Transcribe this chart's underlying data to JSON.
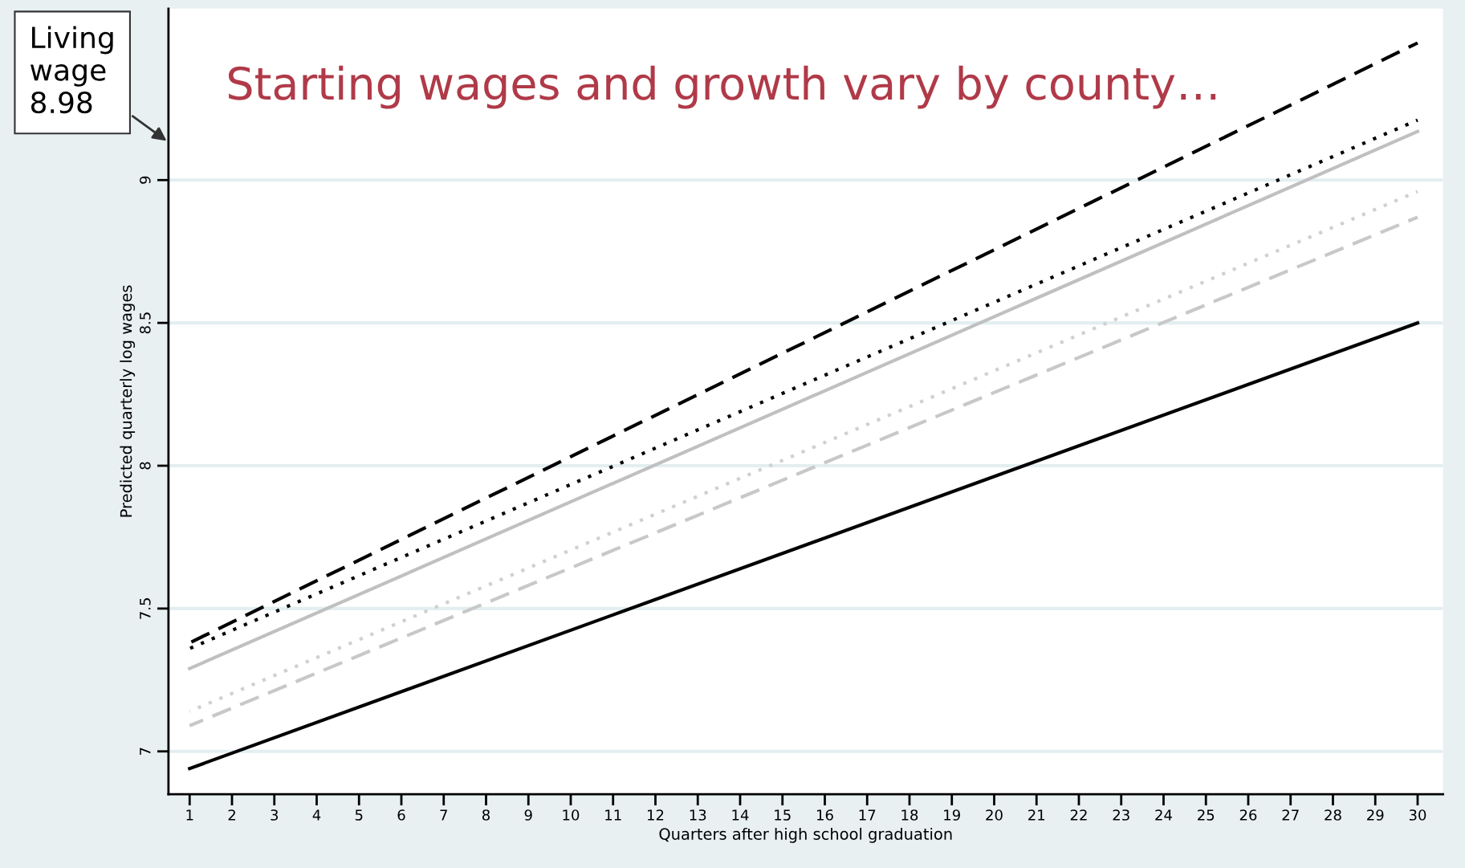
{
  "chart_data": {
    "type": "line",
    "xlabel": "Quarters after high school graduation",
    "ylabel": "Predicted quarterly log wages",
    "x": [
      1,
      30
    ],
    "series": [
      {
        "color": "#000000",
        "line_style": "dashed",
        "values": [
          7.38,
          9.48
        ]
      },
      {
        "color": "#000000",
        "line_style": "dotted",
        "values": [
          7.36,
          9.21
        ]
      },
      {
        "color": "#c0c0c0",
        "line_style": "solid",
        "values": [
          7.29,
          9.17
        ]
      },
      {
        "color": "#d0d0d0",
        "line_style": "dotted",
        "values": [
          7.14,
          8.96
        ]
      },
      {
        "color": "#c8c8c8",
        "line_style": "dashed",
        "values": [
          7.09,
          8.87
        ]
      },
      {
        "color": "#000000",
        "line_style": "solid",
        "values": [
          6.94,
          8.5
        ]
      }
    ],
    "xlim": [
      0.5,
      30.6
    ],
    "ylim": [
      6.85,
      9.6
    ],
    "xticks": [
      1,
      2,
      3,
      4,
      5,
      6,
      7,
      8,
      9,
      10,
      11,
      12,
      13,
      14,
      15,
      16,
      17,
      18,
      19,
      20,
      21,
      22,
      23,
      24,
      25,
      26,
      27,
      28,
      29,
      30
    ],
    "yticks": [
      7,
      7.5,
      8,
      8.5,
      9
    ],
    "grid": "y",
    "legend": false,
    "marker": "none",
    "annotations": [
      "Living\nwage\n8.98",
      "Starting wages and growth vary by county…"
    ]
  }
}
